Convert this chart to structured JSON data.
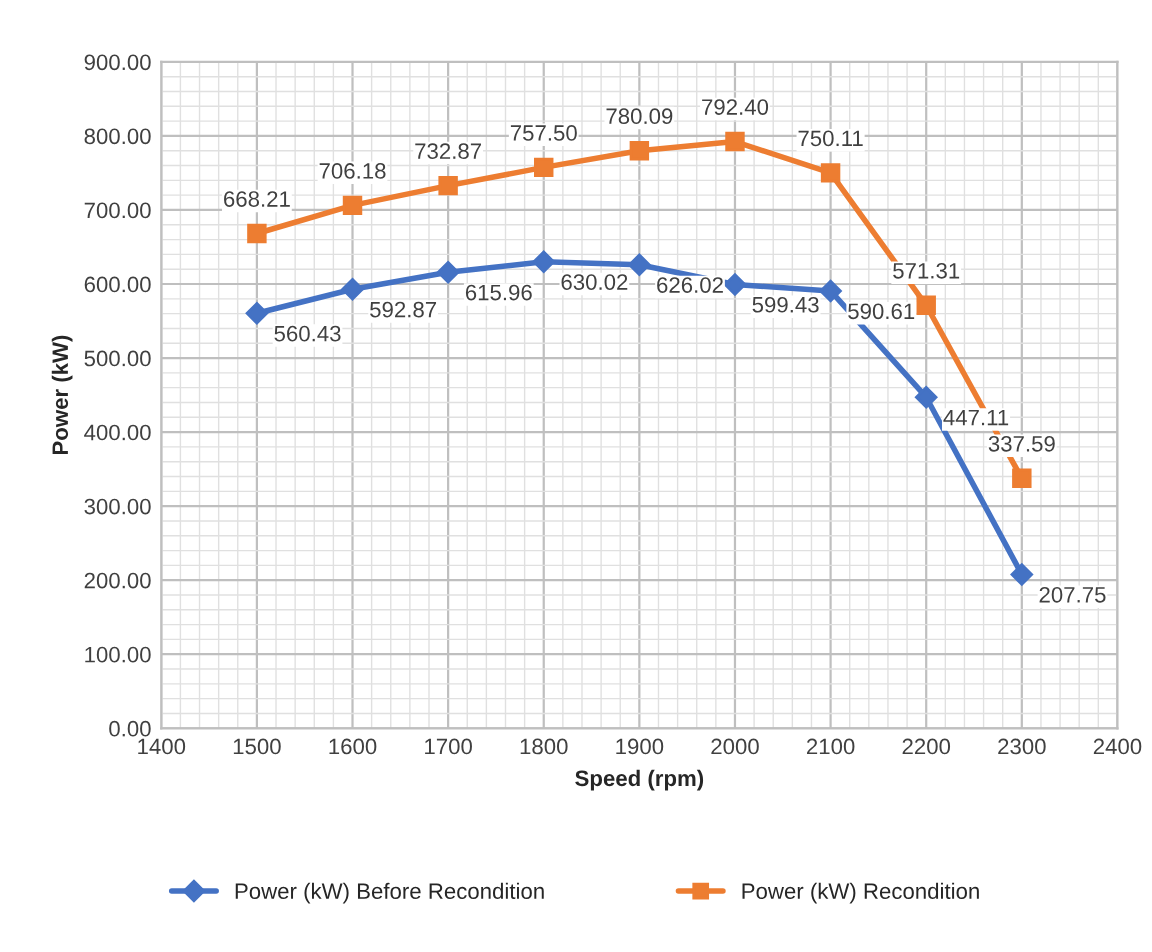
{
  "chart_data": {
    "type": "line",
    "xlabel": "Speed (rpm)",
    "ylabel": "Power (kW)",
    "x": [
      1500,
      1600,
      1700,
      1800,
      1900,
      2000,
      2100,
      2200,
      2300
    ],
    "series": [
      {
        "name": "Power (kW) Before Recondition",
        "color": "#4472c4",
        "marker": "diamond",
        "values": [
          560.43,
          592.87,
          615.96,
          630.02,
          626.02,
          599.43,
          590.61,
          447.11,
          207.75
        ],
        "value_labels": [
          "560.43",
          "592.87",
          "615.96",
          "630.02",
          "626.02",
          "599.43",
          "590.61",
          "447.11",
          "207.75"
        ]
      },
      {
        "name": "Power (kW) Recondition",
        "color": "#ed7d31",
        "marker": "square",
        "values": [
          668.21,
          706.18,
          732.87,
          757.5,
          780.09,
          792.4,
          750.11,
          571.31,
          337.59
        ],
        "value_labels": [
          "668.21",
          "706.18",
          "732.87",
          "757.50",
          "780.09",
          "792.40",
          "750.11",
          "571.31",
          "337.59"
        ]
      }
    ],
    "xlim": [
      1400,
      2400
    ],
    "xticks": [
      1400,
      1500,
      1600,
      1700,
      1800,
      1900,
      2000,
      2100,
      2200,
      2300,
      2400
    ],
    "ylim": [
      0,
      900
    ],
    "yticks": [
      {
        "value": 0,
        "label": "0.00"
      },
      {
        "value": 100,
        "label": "100.00"
      },
      {
        "value": 200,
        "label": "200.00"
      },
      {
        "value": 300,
        "label": "300.00"
      },
      {
        "value": 400,
        "label": "400.00"
      },
      {
        "value": 500,
        "label": "500.00"
      },
      {
        "value": 600,
        "label": "600.00"
      },
      {
        "value": 700,
        "label": "700.00"
      },
      {
        "value": 800,
        "label": "800.00"
      },
      {
        "value": 900,
        "label": "900.00"
      }
    ],
    "grid": true,
    "legend": "bottom"
  }
}
